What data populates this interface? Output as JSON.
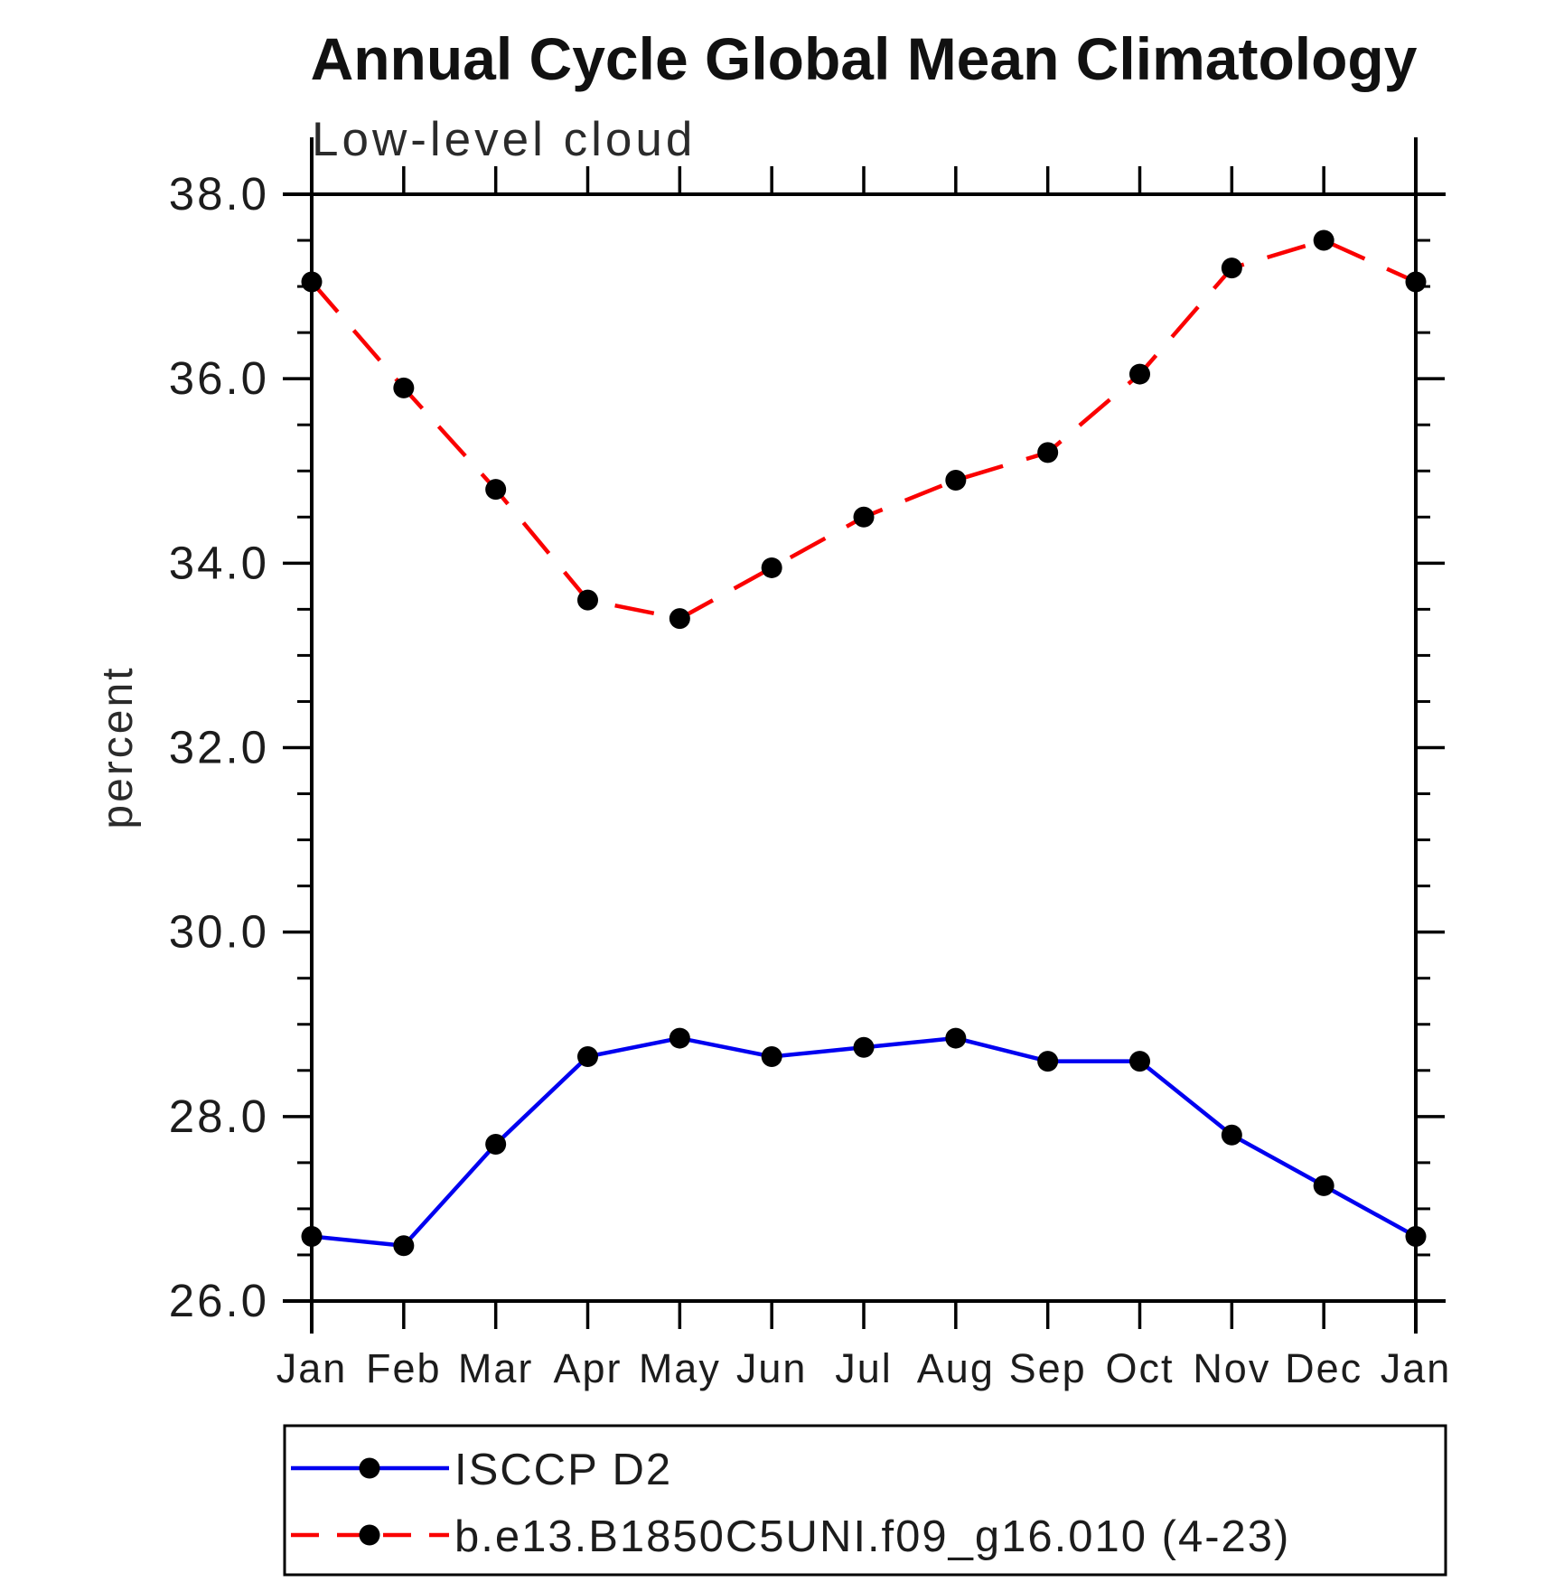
{
  "chart_data": {
    "type": "line",
    "title": "Annual Cycle Global Mean Climatology",
    "subtitle": "Low-level cloud",
    "ylabel": "percent",
    "xlabel": "",
    "categories": [
      "Jan",
      "Feb",
      "Mar",
      "Apr",
      "May",
      "Jun",
      "Jul",
      "Aug",
      "Sep",
      "Oct",
      "Nov",
      "Dec",
      "Jan"
    ],
    "ylim": [
      26.0,
      38.0
    ],
    "y_major_tick_step": 2.0,
    "y_minor_tick_step": 0.5,
    "y_tick_labels": [
      "26.0",
      "28.0",
      "30.0",
      "32.0",
      "34.0",
      "36.0",
      "38.0"
    ],
    "grid": false,
    "legend_position": "bottom-left-box",
    "series": [
      {
        "name": "ISCCP D2",
        "line_color": "#0000f0",
        "line_style": "solid",
        "marker": "filled-circle",
        "marker_color": "#000000",
        "values": [
          26.7,
          26.6,
          27.7,
          28.65,
          28.85,
          28.65,
          28.75,
          28.85,
          28.6,
          28.6,
          27.8,
          27.25,
          26.7
        ]
      },
      {
        "name": "b.e13.B1850C5UNI.f09_g16.010 (4-23)",
        "line_color": "#fa0000",
        "line_style": "dashed",
        "marker": "filled-circle",
        "marker_color": "#000000",
        "values": [
          37.05,
          35.9,
          34.8,
          33.6,
          33.4,
          33.95,
          34.5,
          34.9,
          35.2,
          36.05,
          37.2,
          37.5,
          37.05
        ]
      }
    ],
    "axis_color": "#000000"
  }
}
